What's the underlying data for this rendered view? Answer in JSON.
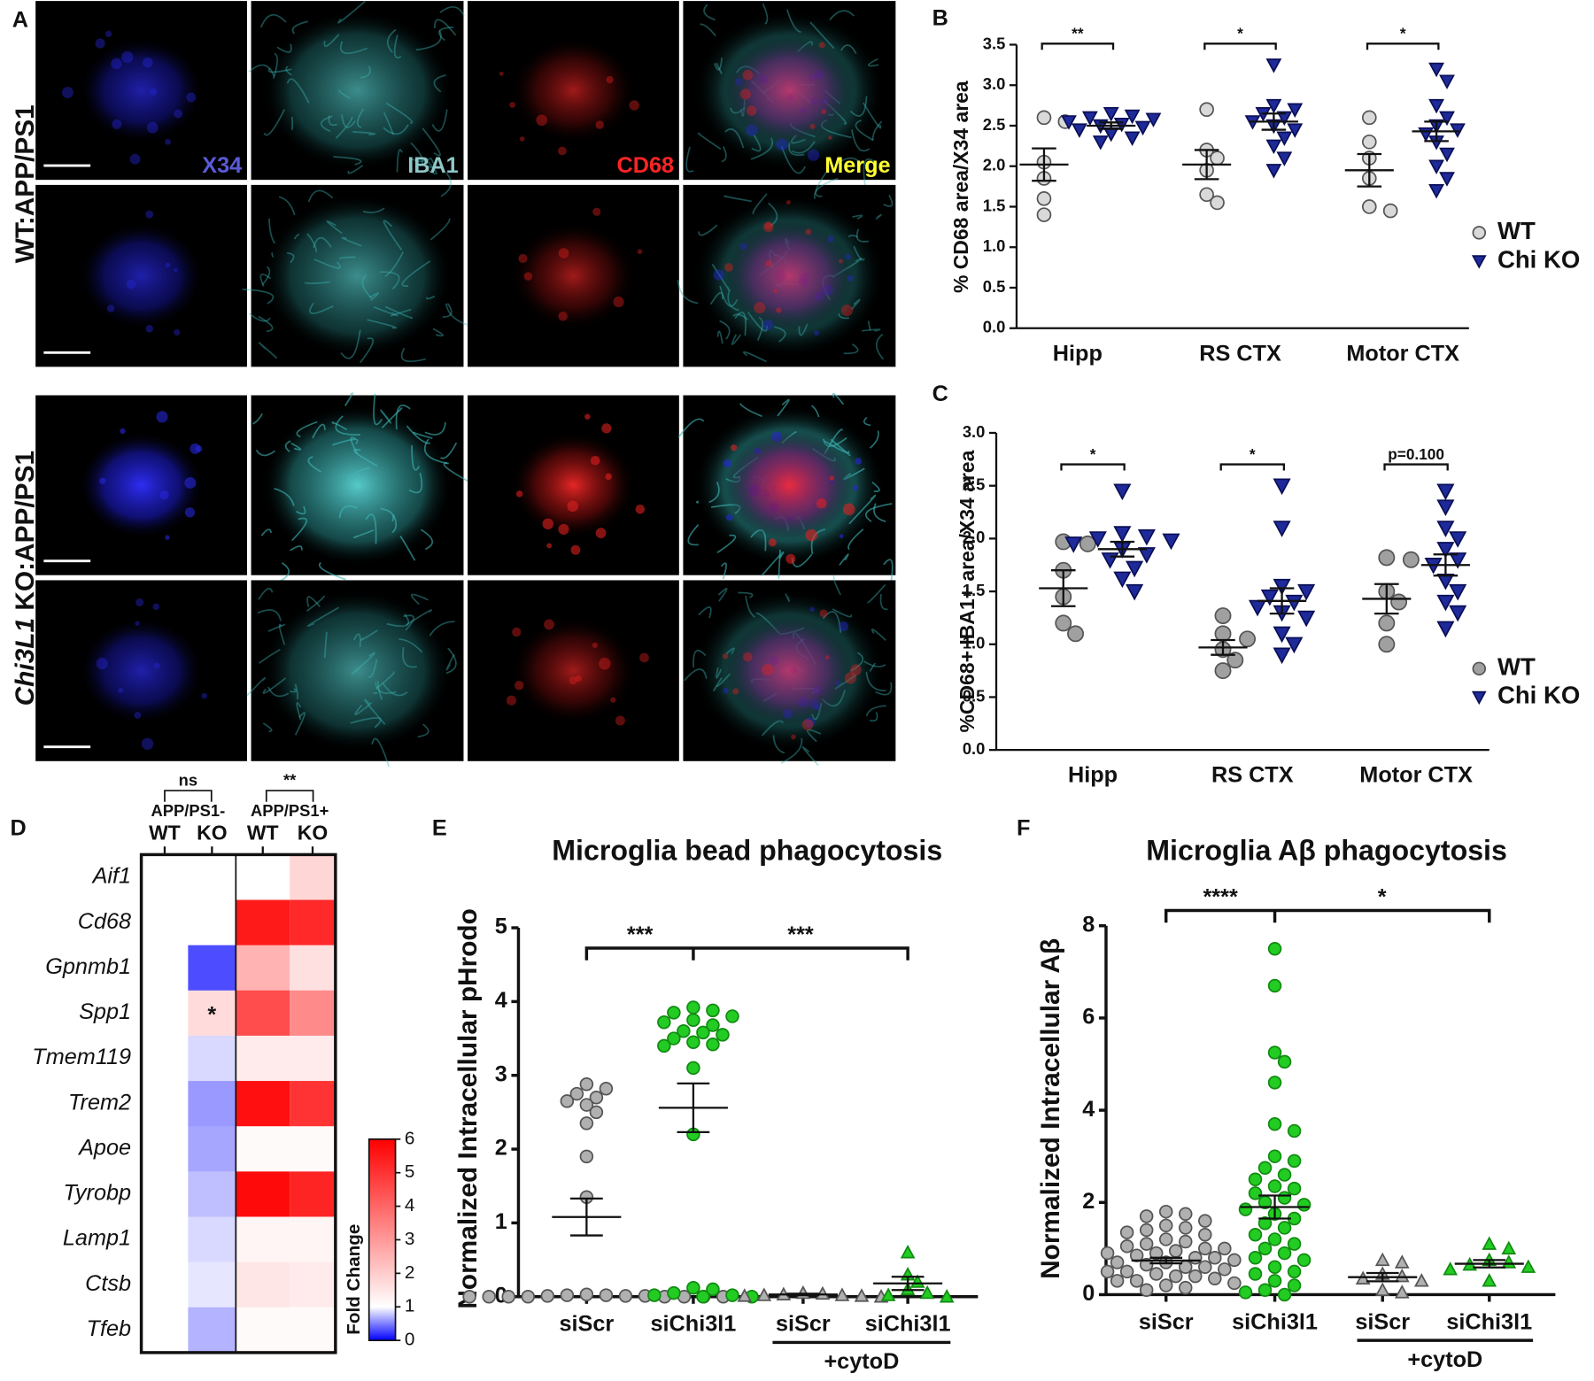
{
  "panel_letters": [
    "A",
    "B",
    "C",
    "D",
    "E",
    "F"
  ],
  "panel_a": {
    "channels": [
      "X34",
      "IBA1",
      "CD68",
      "Merge"
    ],
    "row_labels": [
      [
        "WT:APP/PS1"
      ],
      [
        "Chi3L1",
        " KO:APP/PS1"
      ]
    ]
  },
  "chart_data": [
    {
      "type": "dot",
      "y_label": "% CD68 area/X34 area",
      "categories": [
        "Hipp",
        "RS CTX",
        "Motor CTX"
      ],
      "series": [
        {
          "name": "WT",
          "color": "#d9d9d9",
          "marker": "circle",
          "values": [
            [
              2.6,
              2.55,
              2.05,
              1.85,
              1.6,
              1.4
            ],
            [
              2.7,
              2.2,
              2.1,
              1.95,
              1.65,
              1.55
            ],
            [
              2.6,
              2.3,
              2.1,
              1.85,
              1.5,
              1.45
            ]
          ],
          "mean": [
            2.02,
            2.02,
            1.95
          ],
          "sem": [
            0.2,
            0.18,
            0.2
          ]
        },
        {
          "name": "Chi KO",
          "color": "#1e2a99",
          "marker": "triangle",
          "values": [
            [
              2.65,
              2.62,
              2.6,
              2.58,
              2.55,
              2.52,
              2.5,
              2.48,
              2.45,
              2.4,
              2.35,
              2.3
            ],
            [
              3.25,
              2.75,
              2.7,
              2.65,
              2.6,
              2.55,
              2.5,
              2.45,
              2.35,
              2.25,
              2.1,
              1.95
            ],
            [
              3.2,
              3.05,
              2.75,
              2.6,
              2.5,
              2.45,
              2.4,
              2.3,
              2.15,
              2.0,
              1.85,
              1.7
            ]
          ],
          "mean": [
            2.5,
            2.55,
            2.43
          ],
          "sem": [
            0.04,
            0.1,
            0.12
          ]
        }
      ],
      "ylim": [
        0,
        3.5
      ],
      "yticks": [
        {
          "value": 0,
          "label": "0.0"
        },
        {
          "value": 0.5,
          "label": "0.5"
        },
        {
          "value": 1,
          "label": "1.0"
        },
        {
          "value": 1.5,
          "label": "1.5"
        },
        {
          "value": 2,
          "label": "2.0"
        },
        {
          "value": 2.5,
          "label": "2.5"
        },
        {
          "value": 3,
          "label": "3.0"
        },
        {
          "value": 3.5,
          "label": "3.5"
        }
      ],
      "annotations": [
        "**",
        "*",
        "*"
      ]
    },
    {
      "type": "dot",
      "y_label": "%CD68+ IBA1+ area/X34 area",
      "categories": [
        "Hipp",
        "RS CTX",
        "Motor CTX"
      ],
      "series": [
        {
          "name": "WT",
          "color": "#a0a0a0",
          "marker": "circle",
          "values": [
            [
              1.97,
              1.95,
              1.7,
              1.45,
              1.2,
              1.1
            ],
            [
              1.27,
              1.1,
              1.05,
              0.95,
              0.85,
              0.75
            ],
            [
              1.82,
              1.8,
              1.5,
              1.4,
              1.2,
              1.0
            ]
          ],
          "mean": [
            1.53,
            0.97,
            1.43
          ],
          "sem": [
            0.17,
            0.07,
            0.14
          ]
        },
        {
          "name": "Chi KO",
          "color": "#1e2a99",
          "marker": "triangle",
          "values": [
            [
              2.45,
              2.05,
              2.02,
              2.0,
              1.98,
              1.95,
              1.9,
              1.85,
              1.8,
              1.72,
              1.62,
              1.5
            ],
            [
              2.5,
              2.1,
              1.55,
              1.5,
              1.45,
              1.4,
              1.35,
              1.3,
              1.25,
              1.1,
              1.0,
              0.9
            ],
            [
              2.45,
              2.3,
              2.1,
              2.0,
              1.9,
              1.8,
              1.75,
              1.6,
              1.5,
              1.4,
              1.3,
              1.15
            ]
          ],
          "mean": [
            1.9,
            1.41,
            1.75
          ],
          "sem": [
            0.07,
            0.12,
            0.1
          ]
        }
      ],
      "ylim": [
        0,
        3
      ],
      "yticks": [
        {
          "value": 0,
          "label": "0.0"
        },
        {
          "value": 0.5,
          "label": "0.5"
        },
        {
          "value": 1,
          "label": "1.0"
        },
        {
          "value": 1.5,
          "label": "1.5"
        },
        {
          "value": 2,
          "label": "2.0"
        },
        {
          "value": 2.5,
          "label": "2.5"
        },
        {
          "value": 3,
          "label": "3.0"
        }
      ],
      "annotations": [
        "*",
        "*",
        "p=0.100"
      ]
    },
    {
      "type": "heatmap",
      "rows": [
        "Aif1",
        "Cd68",
        "Gpnmb1",
        "Spp1",
        "Tmem119",
        "Trem2",
        "Apoe",
        "Tyrobp",
        "Lamp1",
        "Ctsb",
        "Tfeb"
      ],
      "column_groups": [
        "APP/PS1-",
        "APP/PS1+"
      ],
      "columns": [
        "WT",
        "KO",
        "WT",
        "KO"
      ],
      "values": [
        [
          1,
          1,
          1,
          1.8
        ],
        [
          1,
          1,
          5.5,
          5.2
        ],
        [
          1,
          0.3,
          2.5,
          1.6
        ],
        [
          1,
          1.7,
          4.5,
          3.3
        ],
        [
          1,
          0.85,
          1.4,
          1.4
        ],
        [
          1,
          0.6,
          5.7,
          5.0
        ],
        [
          1,
          0.65,
          1.1,
          1.1
        ],
        [
          1,
          0.75,
          5.8,
          5.3
        ],
        [
          1,
          0.85,
          1.2,
          1.2
        ],
        [
          1,
          0.9,
          1.5,
          1.4
        ],
        [
          1,
          0.7,
          1.1,
          1.1
        ]
      ],
      "cell_labels": [
        [
          null,
          null,
          null,
          null
        ],
        [
          null,
          null,
          null,
          null
        ],
        [
          null,
          null,
          null,
          null
        ],
        [
          null,
          "*",
          null,
          null
        ],
        [
          null,
          null,
          null,
          null
        ],
        [
          null,
          null,
          null,
          null
        ],
        [
          null,
          null,
          null,
          null
        ],
        [
          null,
          null,
          null,
          null
        ],
        [
          null,
          null,
          null,
          null
        ],
        [
          null,
          null,
          null,
          null
        ],
        [
          null,
          null,
          null,
          null
        ]
      ],
      "annotations": [
        "ns",
        "**"
      ],
      "colorbar_label": "Fold Change",
      "colormap": {
        "low": "#0000ff",
        "mid": "#ffffff",
        "high": "#ff0000",
        "mid_value": 1
      },
      "zlim": [
        0,
        6
      ],
      "zticks": [
        0,
        1,
        2,
        3,
        4,
        5,
        6
      ]
    },
    {
      "type": "group_dot",
      "title": "Microglia bead phagocytosis",
      "y_label": "Normalized Intracellular pHrodo",
      "groups": [
        {
          "label": "siScr",
          "color": "#b0b0b0",
          "marker": "circle",
          "values": [
            2.88,
            2.82,
            2.75,
            2.7,
            2.65,
            2.6,
            2.5,
            2.35,
            1.9,
            1.35,
            0.03,
            0.02,
            0.02,
            0.01,
            0.01,
            0.01,
            0,
            0,
            0,
            0,
            0,
            0,
            0,
            0
          ],
          "mean": 1.08,
          "sem": 0.25
        },
        {
          "label": "siChi3l1",
          "color": "#22cc22",
          "marker": "circle",
          "values": [
            3.92,
            3.88,
            3.85,
            3.8,
            3.75,
            3.72,
            3.68,
            3.6,
            3.58,
            3.55,
            3.5,
            3.45,
            3.42,
            3.4,
            3.1,
            2.2,
            0.12,
            0.1,
            0.05,
            0.02,
            0.02,
            0,
            0
          ],
          "mean": 2.56,
          "sem": 0.33
        },
        {
          "label": "siScr",
          "color": "#b0b0b0",
          "marker": "triangle",
          "values": [
            0.05,
            0.04,
            0.03,
            0.02,
            0.02,
            0.01,
            0.01,
            0
          ],
          "mean": 0.03,
          "sem": 0.01
        },
        {
          "label": "siChi3l1",
          "color": "#22cc22",
          "marker": "triangle",
          "values": [
            0.6,
            0.3,
            0.2,
            0.1,
            0.05,
            0.02,
            0
          ],
          "mean": 0.18,
          "sem": 0.09
        }
      ],
      "group_label": "+cytoD",
      "annotations": [
        "***",
        "***"
      ],
      "ylim": [
        0,
        5
      ],
      "yticks": [
        0,
        1,
        2,
        3,
        4,
        5
      ]
    },
    {
      "type": "group_dot",
      "title": "Microglia Aβ phagocytosis",
      "y_label": "Normalized Intracellular Aβ",
      "groups": [
        {
          "label": "siScr",
          "color": "#b0b0b0",
          "marker": "circle",
          "values": [
            1.8,
            1.75,
            1.7,
            1.6,
            1.5,
            1.45,
            1.4,
            1.35,
            1.3,
            1.2,
            1.15,
            1.1,
            1.05,
            1.0,
            1.0,
            0.95,
            0.9,
            0.9,
            0.85,
            0.8,
            0.8,
            0.75,
            0.7,
            0.7,
            0.65,
            0.6,
            0.6,
            0.55,
            0.5,
            0.5,
            0.45,
            0.4,
            0.4,
            0.35,
            0.3,
            0.3,
            0.25,
            0.2,
            0.15,
            0.1
          ],
          "mean": 0.74,
          "sem": 0.06
        },
        {
          "label": "siChi3l1",
          "color": "#22cc22",
          "marker": "circle",
          "values": [
            7.5,
            6.7,
            5.25,
            5.05,
            4.6,
            3.7,
            3.55,
            3.0,
            2.9,
            2.75,
            2.6,
            2.5,
            2.35,
            2.3,
            2.2,
            2.1,
            2.0,
            1.95,
            1.85,
            1.75,
            1.65,
            1.55,
            1.45,
            1.3,
            1.2,
            1.1,
            1.0,
            0.9,
            0.8,
            0.75,
            0.6,
            0.5,
            0.45,
            0.3,
            0.2,
            0.1,
            0.05,
            0
          ],
          "mean": 1.9,
          "sem": 0.25
        },
        {
          "label": "siScr",
          "color": "#b0b0b0",
          "marker": "triangle",
          "values": [
            0.75,
            0.7,
            0.45,
            0.4,
            0.35,
            0.3,
            0.1,
            0.05
          ],
          "mean": 0.38,
          "sem": 0.09
        },
        {
          "label": "siChi3l1",
          "color": "#22cc22",
          "marker": "triangle",
          "values": [
            1.1,
            1.0,
            0.75,
            0.7,
            0.65,
            0.6,
            0.55,
            0.3
          ],
          "mean": 0.67,
          "sem": 0.08
        }
      ],
      "group_label": "+cytoD",
      "annotations": [
        "****",
        "*"
      ],
      "ylim": [
        0,
        8
      ],
      "yticks": [
        0,
        2,
        4,
        6,
        8
      ]
    }
  ]
}
